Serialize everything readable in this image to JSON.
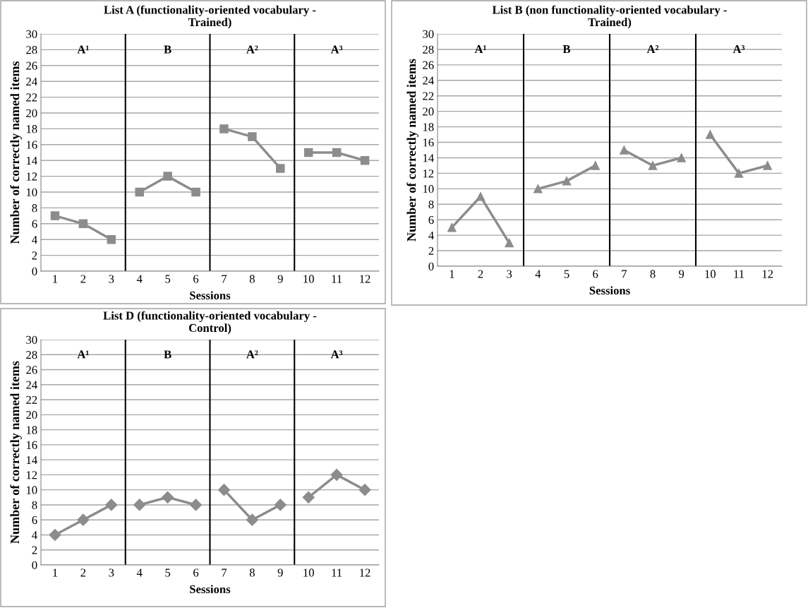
{
  "chart_data": [
    {
      "type": "line",
      "title": "List A (functionality-oriented vocabulary - Trained)",
      "xlabel": "Sessions",
      "ylabel": "Number of correctly named items",
      "xlim": [
        0.5,
        12.5
      ],
      "xticks": [
        1,
        2,
        3,
        4,
        5,
        6,
        7,
        8,
        9,
        10,
        11,
        12
      ],
      "ylim": [
        0,
        30
      ],
      "yticks": [
        0,
        2,
        4,
        6,
        8,
        10,
        12,
        14,
        16,
        18,
        20,
        22,
        24,
        26,
        28,
        30
      ],
      "grid": "y",
      "marker": "square",
      "series": [
        {
          "x": [
            1,
            2,
            3
          ],
          "values": [
            7,
            6,
            4
          ],
          "color": "#8c8c8c"
        },
        {
          "x": [
            4,
            5,
            6
          ],
          "values": [
            10,
            12,
            10
          ],
          "color": "#8c8c8c"
        },
        {
          "x": [
            7,
            8,
            9
          ],
          "values": [
            18,
            17,
            13
          ],
          "color": "#8c8c8c"
        },
        {
          "x": [
            10,
            11,
            12
          ],
          "values": [
            15,
            15,
            14
          ],
          "color": "#8c8c8c"
        }
      ],
      "ref_lines": [
        {
          "axis": "x",
          "value": 3.5,
          "color": "#000000"
        },
        {
          "axis": "x",
          "value": 6.5,
          "color": "#000000"
        },
        {
          "axis": "x",
          "value": 9.5,
          "color": "#000000"
        }
      ],
      "annotations": [
        "A¹",
        "B",
        "A²",
        "A³"
      ]
    },
    {
      "type": "line",
      "title": "List B (non functionality-oriented vocabulary - Trained)",
      "xlabel": "Sessions",
      "ylabel": "Number of correctly named items",
      "xlim": [
        0.5,
        12.5
      ],
      "xticks": [
        1,
        2,
        3,
        4,
        5,
        6,
        7,
        8,
        9,
        10,
        11,
        12
      ],
      "ylim": [
        0,
        30
      ],
      "yticks": [
        0,
        2,
        4,
        6,
        8,
        10,
        12,
        14,
        16,
        18,
        20,
        22,
        24,
        26,
        28,
        30
      ],
      "grid": "y",
      "marker": "triangle",
      "series": [
        {
          "x": [
            1,
            2,
            3
          ],
          "values": [
            5,
            9,
            3
          ],
          "color": "#8c8c8c"
        },
        {
          "x": [
            4,
            5,
            6
          ],
          "values": [
            10,
            11,
            13
          ],
          "color": "#8c8c8c"
        },
        {
          "x": [
            7,
            8,
            9
          ],
          "values": [
            15,
            13,
            14
          ],
          "color": "#8c8c8c"
        },
        {
          "x": [
            10,
            11,
            12
          ],
          "values": [
            17,
            12,
            13
          ],
          "color": "#8c8c8c"
        }
      ],
      "ref_lines": [
        {
          "axis": "x",
          "value": 3.5,
          "color": "#000000"
        },
        {
          "axis": "x",
          "value": 6.5,
          "color": "#000000"
        },
        {
          "axis": "x",
          "value": 9.5,
          "color": "#000000"
        }
      ],
      "annotations": [
        "A¹",
        "B",
        "A²",
        "A³"
      ]
    },
    {
      "type": "line",
      "title": "List D (functionality-oriented vocabulary - Control)",
      "xlabel": "Sessions",
      "ylabel": "Number of correctly named items",
      "xlim": [
        0.5,
        12.5
      ],
      "xticks": [
        1,
        2,
        3,
        4,
        5,
        6,
        7,
        8,
        9,
        10,
        11,
        12
      ],
      "ylim": [
        0,
        30
      ],
      "yticks": [
        0,
        2,
        4,
        6,
        8,
        10,
        12,
        14,
        16,
        18,
        20,
        22,
        24,
        26,
        28,
        30
      ],
      "grid": "y",
      "marker": "diamond",
      "series": [
        {
          "x": [
            1,
            2,
            3
          ],
          "values": [
            4,
            6,
            8
          ],
          "color": "#8c8c8c"
        },
        {
          "x": [
            4,
            5,
            6
          ],
          "values": [
            8,
            9,
            8
          ],
          "color": "#8c8c8c"
        },
        {
          "x": [
            7,
            8,
            9
          ],
          "values": [
            10,
            6,
            8
          ],
          "color": "#8c8c8c"
        },
        {
          "x": [
            10,
            11,
            12
          ],
          "values": [
            9,
            12,
            10
          ],
          "color": "#8c8c8c"
        }
      ],
      "ref_lines": [
        {
          "axis": "x",
          "value": 3.5,
          "color": "#000000"
        },
        {
          "axis": "x",
          "value": 6.5,
          "color": "#000000"
        },
        {
          "axis": "x",
          "value": 9.5,
          "color": "#000000"
        }
      ],
      "annotations": [
        "A¹",
        "B",
        "A²",
        "A³"
      ]
    }
  ]
}
